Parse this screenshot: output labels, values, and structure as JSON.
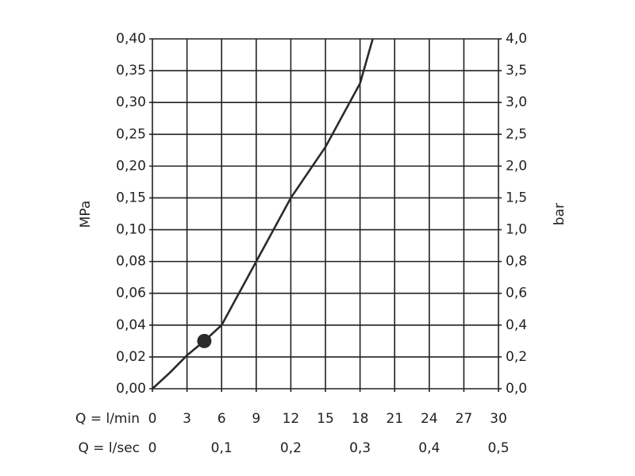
{
  "chart_data": {
    "type": "line",
    "y_label": "MPa",
    "y2_label": "bar",
    "x_label": "Q = l/min",
    "x2_label": "Q = l/sec",
    "y_scale": "piecewise",
    "grid": true,
    "x": [
      0,
      1.5,
      3,
      4.5,
      6,
      9,
      12,
      15,
      18,
      19.1
    ],
    "series": [
      {
        "color": "#2b2b2b",
        "values": [
          0,
          0.01,
          0.021,
          0.03,
          0.04,
          0.08,
          0.15,
          0.23,
          0.33,
          0.4
        ]
      }
    ],
    "point": {
      "x": 4.5,
      "value": 0.03,
      "color": "#2b2b2b"
    },
    "xlim": [
      0,
      30
    ],
    "xticks": [
      0,
      3,
      6,
      9,
      12,
      15,
      18,
      21,
      24,
      27,
      30
    ],
    "x2lim": [
      0,
      0.5
    ],
    "x2ticks": [
      0,
      {
        "value": 0.1,
        "label": "0,1"
      },
      {
        "value": 0.2,
        "label": "0,2"
      },
      {
        "value": 0.3,
        "label": "0,3"
      },
      {
        "value": 0.4,
        "label": "0,4"
      },
      {
        "value": 0.5,
        "label": "0,5"
      }
    ],
    "ylim": [
      0,
      0.4
    ],
    "yticks": [
      {
        "value": 0,
        "label": "0,00"
      },
      {
        "value": 0.02,
        "label": "0,02"
      },
      {
        "value": 0.04,
        "label": "0,04"
      },
      {
        "value": 0.06,
        "label": "0,06"
      },
      {
        "value": 0.08,
        "label": "0,08"
      },
      {
        "value": 0.1,
        "label": "0,10"
      },
      {
        "value": 0.15,
        "label": "0,15"
      },
      {
        "value": 0.2,
        "label": "0,20"
      },
      {
        "value": 0.25,
        "label": "0,25"
      },
      {
        "value": 0.3,
        "label": "0,30"
      },
      {
        "value": 0.35,
        "label": "0,35"
      },
      {
        "value": 0.4,
        "label": "0,40"
      }
    ],
    "y2lim": [
      0,
      4
    ],
    "y2ticks": [
      {
        "value": 0,
        "label": "0,0"
      },
      {
        "value": 0.2,
        "label": "0,2"
      },
      {
        "value": 0.4,
        "label": "0,4"
      },
      {
        "value": 0.6,
        "label": "0,6"
      },
      {
        "value": 0.8,
        "label": "0,8"
      },
      {
        "value": 1,
        "label": "1,0"
      },
      {
        "value": 1.5,
        "label": "1,5"
      },
      {
        "value": 2,
        "label": "2,0"
      },
      {
        "value": 2.5,
        "label": "2,5"
      },
      {
        "value": 3,
        "label": "3,0"
      },
      {
        "value": 3.5,
        "label": "3,5"
      },
      {
        "value": 4,
        "label": "4,0"
      }
    ]
  }
}
